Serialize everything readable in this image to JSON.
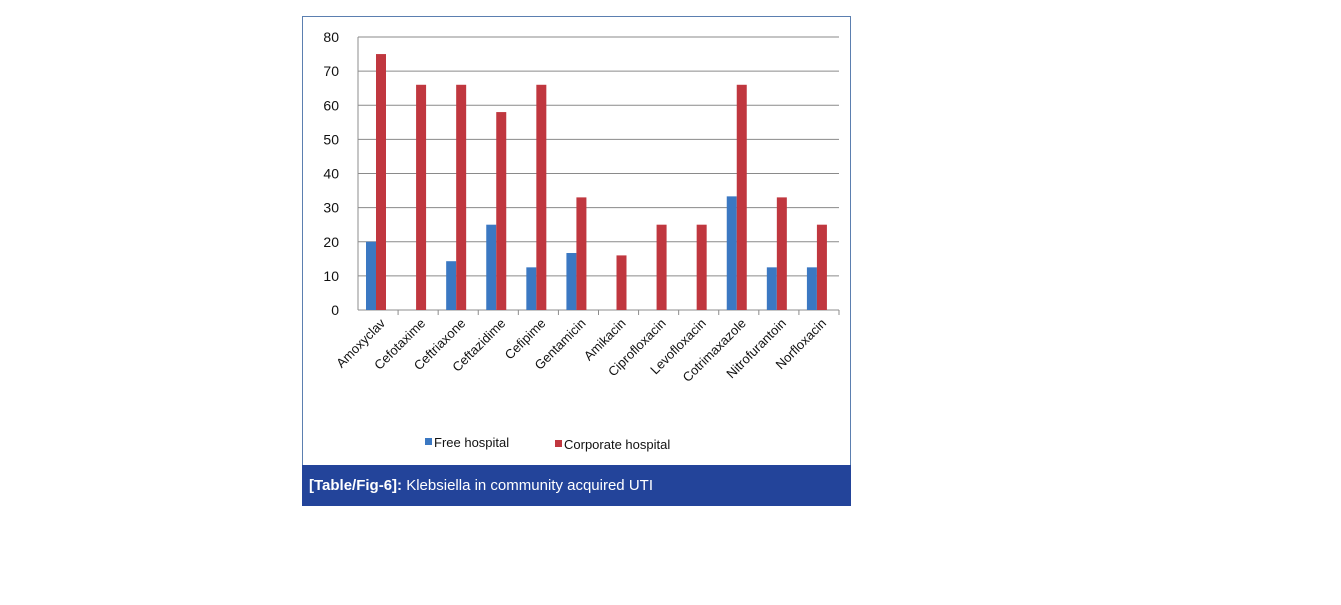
{
  "chart_data": {
    "type": "bar",
    "categories": [
      "Amoxyclav",
      "Cefotaxime",
      "Ceftriaxone",
      "Ceftazidime",
      "Cefipime",
      "Gentamicin",
      "Amikacin",
      "Ciprofloxacin",
      "Levofloxacin",
      "Cotrimaxazole",
      "Nitrofurantoin",
      "Norfloxacin"
    ],
    "series": [
      {
        "name": "Free hospital",
        "color": "#3b78c2",
        "values": [
          20,
          0,
          14.3,
          25,
          12.5,
          16.7,
          0,
          0,
          0,
          33.3,
          12.5,
          12.5
        ]
      },
      {
        "name": "Corporate hospital",
        "color": "#c0373f",
        "values": [
          75,
          66,
          66,
          58,
          66,
          33,
          16,
          25,
          25,
          66,
          33,
          25
        ]
      }
    ],
    "yticks": [
      "0",
      "10",
      "20",
      "30",
      "40",
      "50",
      "60",
      "70",
      "80"
    ],
    "ylim": [
      0,
      80
    ],
    "grid": true,
    "legend_position": "bottom"
  },
  "caption": {
    "label": "[Table/Fig-6]:",
    "text": " Klebsiella in community acquired UTI"
  }
}
